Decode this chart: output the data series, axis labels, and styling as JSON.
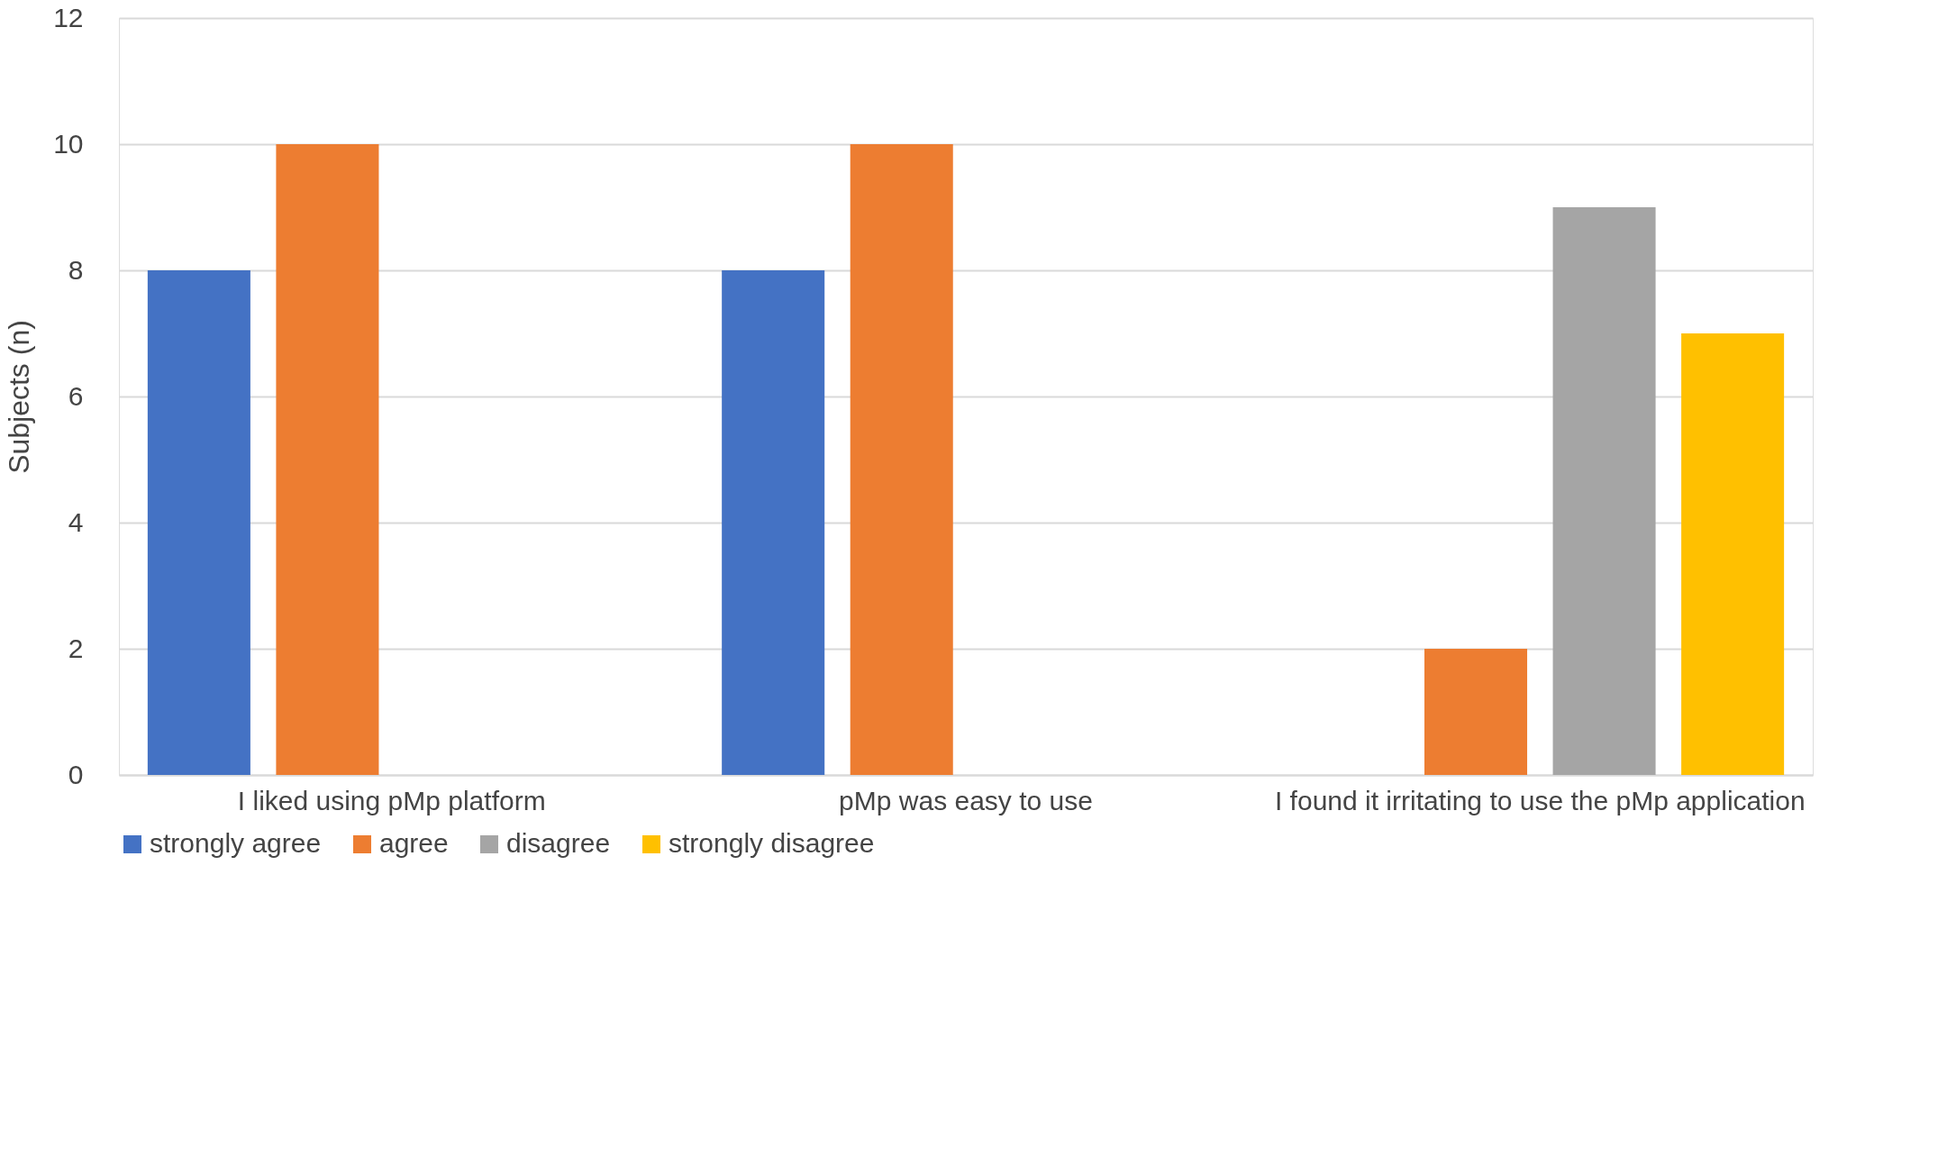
{
  "chart_data": {
    "type": "bar",
    "ylabel": "Subjects (n)",
    "categories": [
      "I liked using pMp platform",
      "pMp was easy to use",
      "I found it irritating to use the pMp application"
    ],
    "series": [
      {
        "name": "strongly agree",
        "color": "#4472c4",
        "values": [
          8,
          8,
          null
        ]
      },
      {
        "name": "agree",
        "color": "#ed7d31",
        "values": [
          10,
          10,
          2
        ]
      },
      {
        "name": "disagree",
        "color": "#a5a5a5",
        "values": [
          null,
          null,
          9
        ]
      },
      {
        "name": "strongly disagree",
        "color": "#ffc000",
        "values": [
          null,
          null,
          7
        ]
      }
    ],
    "ylim": [
      0,
      12
    ],
    "yticks": [
      0,
      2,
      4,
      6,
      8,
      10,
      12
    ],
    "grid": "y",
    "legend": "bottom"
  }
}
